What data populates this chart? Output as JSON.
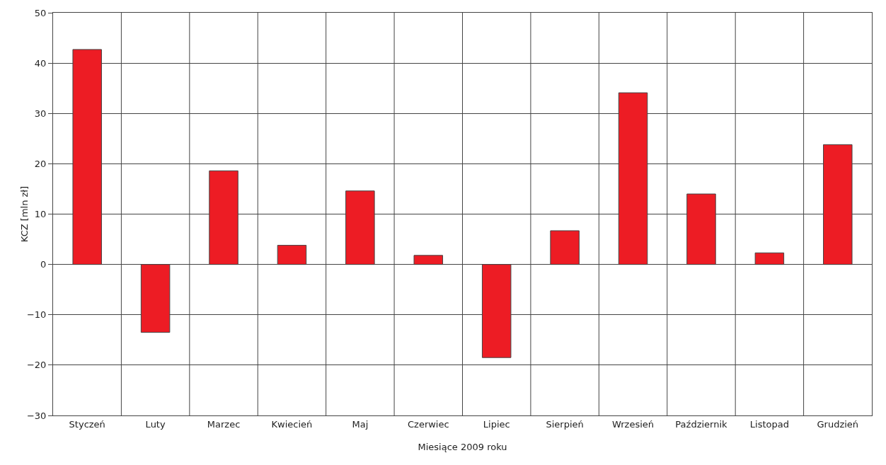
{
  "chart_data": {
    "type": "bar",
    "xlabel": "Miesiące 2009 roku",
    "ylabel": "KCZ [mln zł]",
    "categories": [
      "Styczeń",
      "Luty",
      "Marzec",
      "Kwiecień",
      "Maj",
      "Czerwiec",
      "Lipiec",
      "Sierpień",
      "Wrzesień",
      "Październik",
      "Listopad",
      "Grudzień"
    ],
    "values": [
      42.7,
      -13.5,
      18.6,
      3.8,
      14.6,
      1.8,
      -18.5,
      6.7,
      34.1,
      14.0,
      2.3,
      23.8
    ],
    "color": "#ed1c24",
    "ylim": [
      -30,
      50
    ],
    "yticks": [
      {
        "value": -30,
        "label": "−30"
      },
      {
        "value": -20,
        "label": "−20"
      },
      {
        "value": -10,
        "label": "−10"
      },
      0,
      10,
      20,
      30,
      40,
      50
    ],
    "grid": true
  }
}
